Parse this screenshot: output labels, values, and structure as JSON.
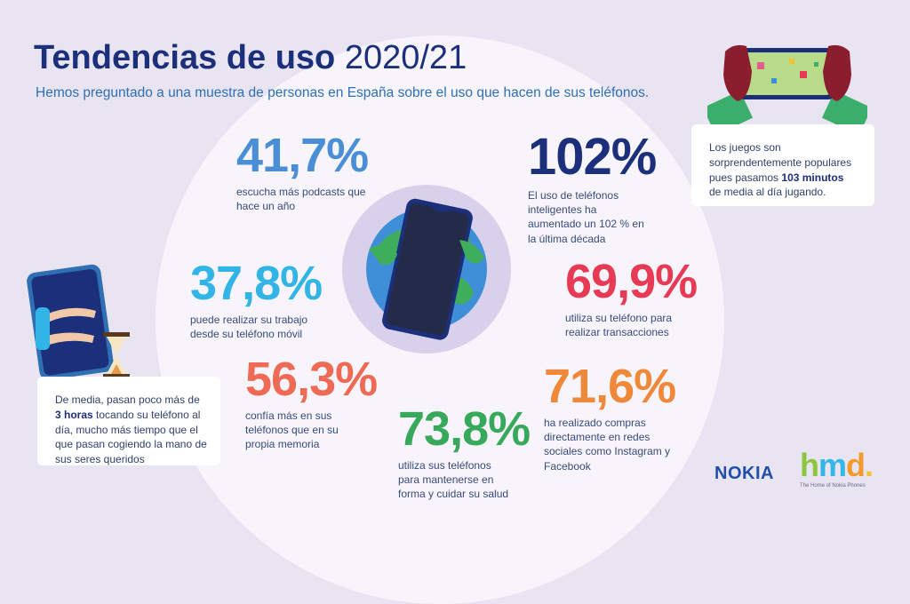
{
  "header": {
    "title_bold": "Tendencias de uso",
    "title_year": "2020/21",
    "subtitle": "Hemos preguntado a una muestra de personas en España sobre el uso que hacen de sus teléfonos."
  },
  "stats": [
    {
      "value": "41,7%",
      "desc": "escucha más podcasts que hace un año"
    },
    {
      "value": "102%",
      "desc": "El uso de teléfonos inteligentes ha aumentado un 102 % en la última década"
    },
    {
      "value": "37,8%",
      "desc": "puede realizar su trabajo desde su teléfono móvil"
    },
    {
      "value": "69,9%",
      "desc": "utiliza su teléfono para realizar transacciones"
    },
    {
      "value": "56,3%",
      "desc": "confía más en sus teléfonos que en su propia memoria"
    },
    {
      "value": "71,6%",
      "desc": "ha realizado compras directamente en redes sociales como Instagram y Facebook"
    },
    {
      "value": "73,8%",
      "desc": "utiliza sus teléfonos para mantenerse en forma y cuidar su salud"
    }
  ],
  "cards": {
    "games": {
      "before": "Los juegos son sorprendentemente populares pues pasamos ",
      "bold": "103 minutos",
      "after": " de media al día jugando."
    },
    "hours": {
      "before": "De media, pasan poco más de ",
      "bold": "3 horas",
      "after": " tocando su teléfono al día, mucho más tiempo que el que pasan cogiendo la mano de sus seres queridos"
    }
  },
  "logos": {
    "nokia": "NOKIA",
    "hmd_h": "h",
    "hmd_m": "m",
    "hmd_d": "d",
    "hmd_dot": ".",
    "hmd_tagline": "The Home of Nokia Phones"
  },
  "colors": {
    "title": "#1c2f7a",
    "subtitle": "#2f6fb3",
    "stat_41": "#4a8fd6",
    "stat_102": "#1c2f7a",
    "stat_37": "#33b4e6",
    "stat_69": "#e63a55",
    "stat_56": "#ee6a55",
    "stat_71": "#f0883a",
    "stat_73": "#38a85a"
  },
  "icons": {
    "globe": "globe-phone-icon",
    "gaming": "hands-gaming-phone-icon",
    "hug": "hugging-phone-hourglass-icon"
  }
}
